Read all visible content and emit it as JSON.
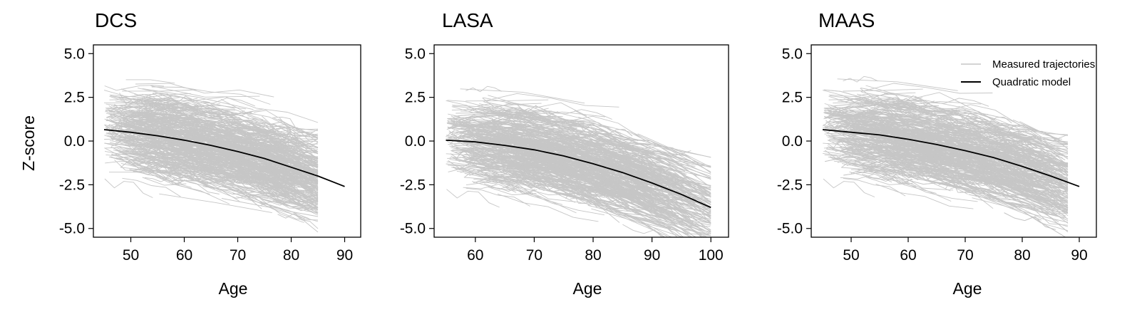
{
  "chart_data": [
    {
      "type": "line",
      "title": "DCS",
      "xlabel": "Age",
      "ylabel": "Z-score",
      "xlim": [
        43,
        93
      ],
      "ylim": [
        -5.5,
        5.5
      ],
      "xticks": [
        "50",
        "60",
        "70",
        "80",
        "90"
      ],
      "yticks": [
        "5.0",
        "2.5",
        "0.0",
        "-2.5",
        "-5.0"
      ],
      "series": [
        {
          "name": "Measured trajectories",
          "style": "thin grey lines (individual participants)",
          "age_start_range": [
            45,
            78
          ],
          "age_end_max": 85,
          "zscore_band_at_start": [
            -2.0,
            3.5
          ],
          "zscore_band_at_end": [
            -4.0,
            2.0
          ]
        },
        {
          "name": "Quadratic model",
          "x": [
            45,
            50,
            55,
            60,
            65,
            70,
            75,
            80,
            85,
            90
          ],
          "y": [
            0.65,
            0.5,
            0.3,
            0.05,
            -0.25,
            -0.6,
            -1.0,
            -1.5,
            -2.0,
            -2.6
          ]
        }
      ]
    },
    {
      "type": "line",
      "title": "LASA",
      "xlabel": "Age",
      "ylabel": "",
      "xlim": [
        53,
        103
      ],
      "ylim": [
        -5.5,
        5.5
      ],
      "xticks": [
        "60",
        "70",
        "80",
        "90",
        "100"
      ],
      "yticks": [
        "5.0",
        "2.5",
        "0.0",
        "-2.5",
        "-5.0"
      ],
      "series": [
        {
          "name": "Measured trajectories",
          "style": "thin grey lines (individual participants)",
          "age_start_range": [
            55,
            88
          ],
          "age_end_max": 100,
          "zscore_band_at_start": [
            -2.5,
            3.0
          ],
          "zscore_band_at_end": [
            -4.5,
            1.0
          ]
        },
        {
          "name": "Quadratic model",
          "x": [
            55,
            60,
            65,
            70,
            75,
            80,
            85,
            90,
            95,
            100
          ],
          "y": [
            0.05,
            -0.05,
            -0.25,
            -0.5,
            -0.85,
            -1.3,
            -1.8,
            -2.4,
            -3.05,
            -3.8
          ]
        }
      ]
    },
    {
      "type": "line",
      "title": "MAAS",
      "xlabel": "Age",
      "ylabel": "",
      "xlim": [
        43,
        93
      ],
      "ylim": [
        -5.5,
        5.5
      ],
      "xticks": [
        "50",
        "60",
        "70",
        "80",
        "90"
      ],
      "yticks": [
        "5.0",
        "2.5",
        "0.0",
        "-2.5",
        "-5.0"
      ],
      "legend": {
        "placement": "top-right",
        "entries": [
          "Measured trajectories",
          "Quadratic model"
        ]
      },
      "series": [
        {
          "name": "Measured trajectories",
          "style": "thin grey lines (individual participants)",
          "age_start_range": [
            45,
            80
          ],
          "age_end_max": 88,
          "zscore_band_at_start": [
            -2.5,
            3.5
          ],
          "zscore_band_at_end": [
            -4.0,
            1.5
          ]
        },
        {
          "name": "Quadratic model",
          "x": [
            45,
            50,
            55,
            60,
            65,
            70,
            75,
            80,
            85,
            90
          ],
          "y": [
            0.65,
            0.5,
            0.35,
            0.1,
            -0.2,
            -0.55,
            -0.95,
            -1.45,
            -2.0,
            -2.6
          ]
        }
      ]
    }
  ],
  "colors": {
    "trajectories": "#c6c6c6",
    "model": "#000000",
    "axes": "#000000"
  }
}
